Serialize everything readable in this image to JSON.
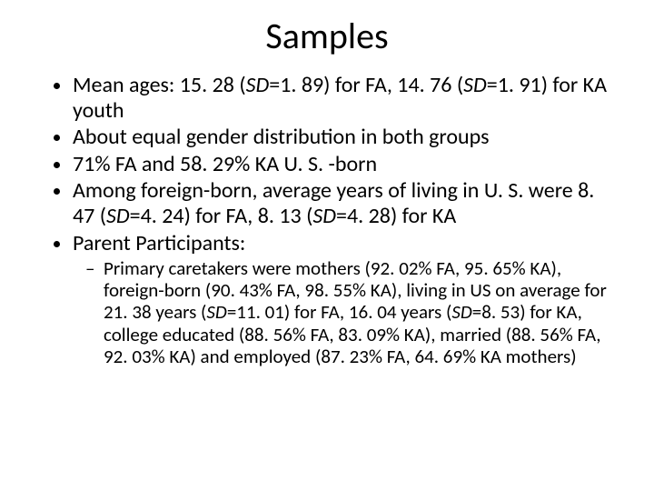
{
  "slide": {
    "title": "Samples",
    "bullets": [
      {
        "pre": "Mean ages: 15. 28 (",
        "sd": "SD",
        "post": "=1. 89) for FA, 14. 76 (",
        "sd2": "SD",
        "post2": "=1. 91) for KA youth"
      },
      {
        "text": "About equal gender distribution in both groups"
      },
      {
        "text": "71% FA and 58. 29% KA U. S. -born"
      },
      {
        "pre": "Among foreign-born, average years of living in U. S. were 8. 47 (",
        "sd": "SD",
        "post": "=4. 24) for FA, 8. 13 (",
        "sd2": "SD",
        "post2": "=4. 28) for KA"
      },
      {
        "text": "Parent Participants:"
      }
    ],
    "sub": {
      "pre": "Primary caretakers were mothers (92. 02% FA, 95. 65% KA), foreign-born (90. 43% FA, 98. 55% KA), living in US on average for 21. 38 years (",
      "sd": "SD",
      "mid": "=11. 01) for FA, 16. 04 years (",
      "sd2": "SD",
      "post": "=8. 53) for KA, college educated (88. 56% FA, 83. 09% KA), married (88. 56% FA, 92. 03% KA) and employed (87. 23% FA, 64. 69% KA mothers)"
    }
  },
  "style": {
    "background_color": "#ffffff",
    "text_color": "#000000",
    "title_fontsize": 40,
    "body_fontsize": 24,
    "sub_fontsize": 21,
    "font_family": "Calibri"
  }
}
